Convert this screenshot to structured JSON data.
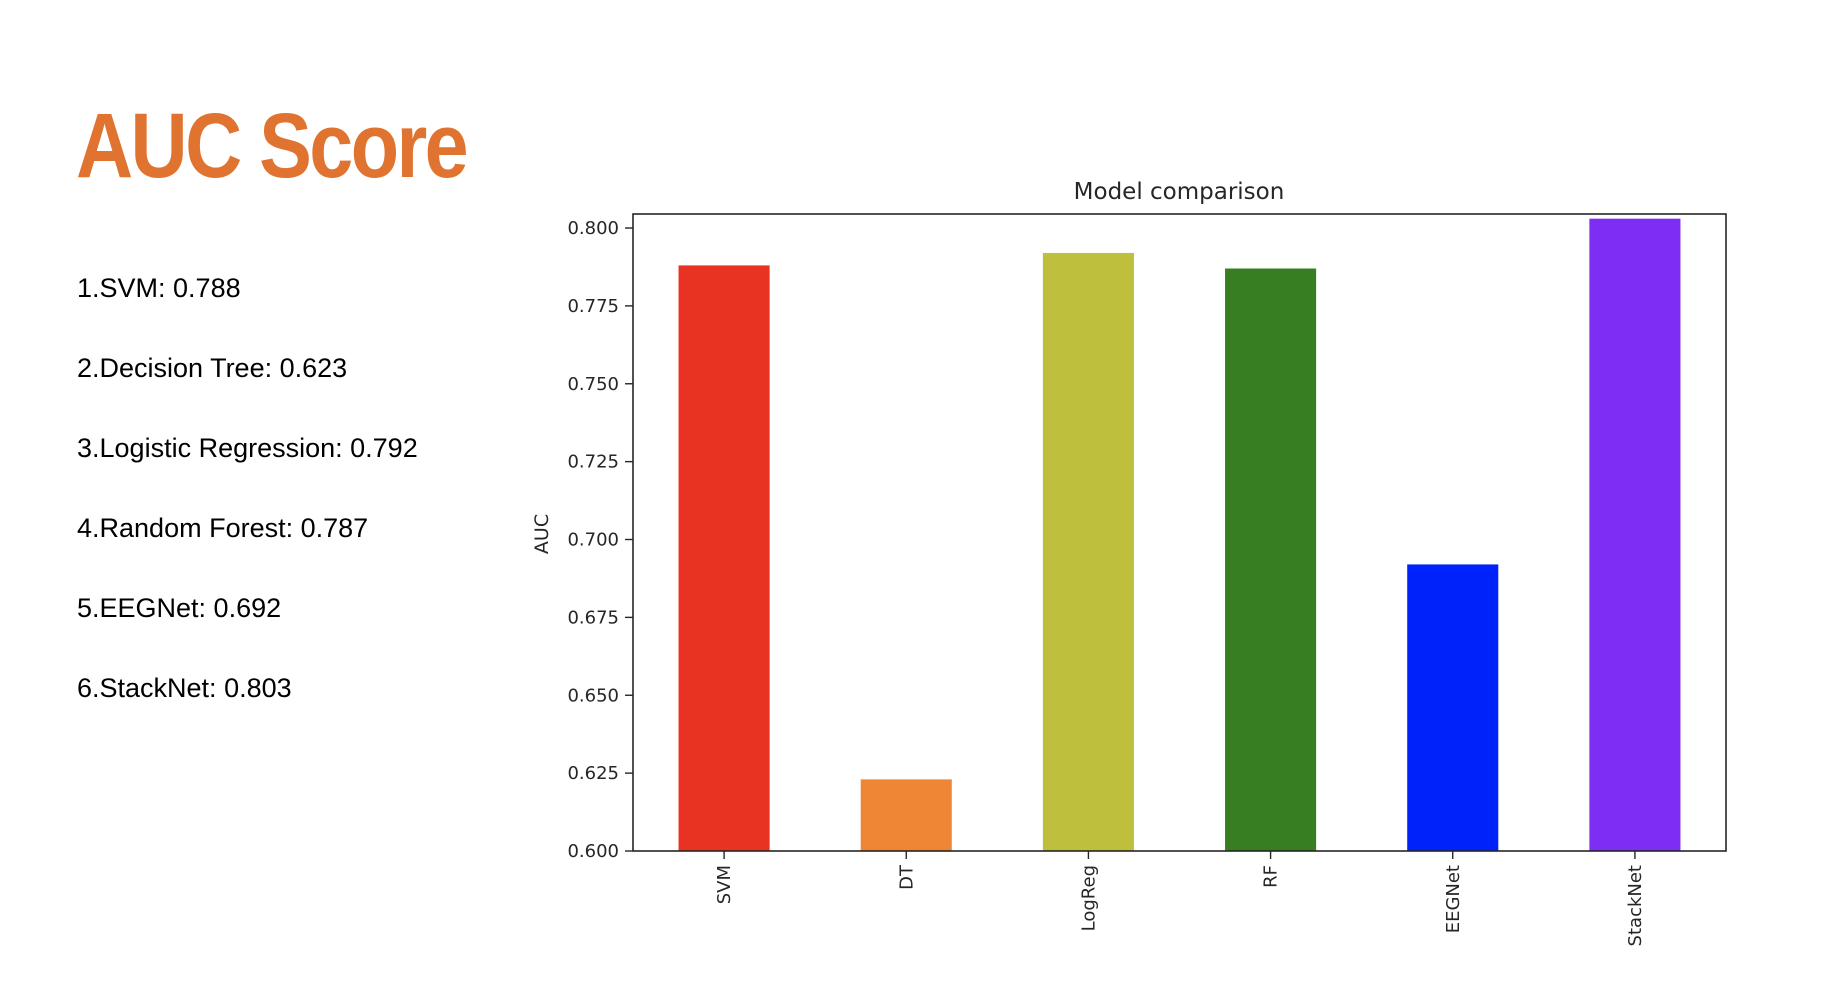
{
  "slide": {
    "title": "AUC Score",
    "scores": [
      "1.SVM: 0.788",
      "2.Decision Tree: 0.623",
      "3.Logistic Regression: 0.792",
      "4.Random Forest: 0.787",
      "5.EEGNet: 0.692",
      "6.StackNet: 0.803"
    ]
  },
  "chart_data": {
    "type": "bar",
    "title": "Model comparison",
    "xlabel": "",
    "ylabel": "AUC",
    "categories": [
      "SVM",
      "DT",
      "LogReg",
      "RF",
      "EEGNet",
      "StackNet"
    ],
    "values": [
      0.788,
      0.623,
      0.792,
      0.787,
      0.692,
      0.803
    ],
    "colors": [
      "#e83323",
      "#ef8636",
      "#bfbf3e",
      "#377e22",
      "#0022fa",
      "#7e2ef2"
    ],
    "ylim": [
      0.6,
      0.8045
    ],
    "yticks": [
      "0.600",
      "0.625",
      "0.650",
      "0.675",
      "0.700",
      "0.725",
      "0.750",
      "0.775",
      "0.800"
    ],
    "grid": false,
    "legend": "none"
  }
}
